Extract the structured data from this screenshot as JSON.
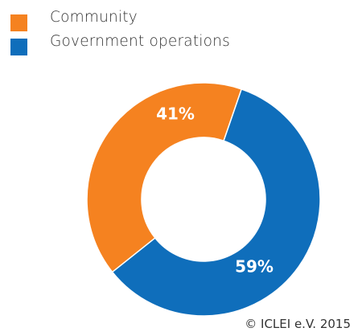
{
  "chart_data": {
    "type": "pie",
    "variant": "donut",
    "legend_position": "top-left",
    "slices": [
      {
        "name": "Community",
        "value": 41,
        "label": "41%",
        "color": "#F58220"
      },
      {
        "name": "Government operations",
        "value": 59,
        "label": "59%",
        "color": "#0F6EBB"
      }
    ]
  },
  "footer": {
    "copyright": "© ICLEI e.V. 2015"
  }
}
